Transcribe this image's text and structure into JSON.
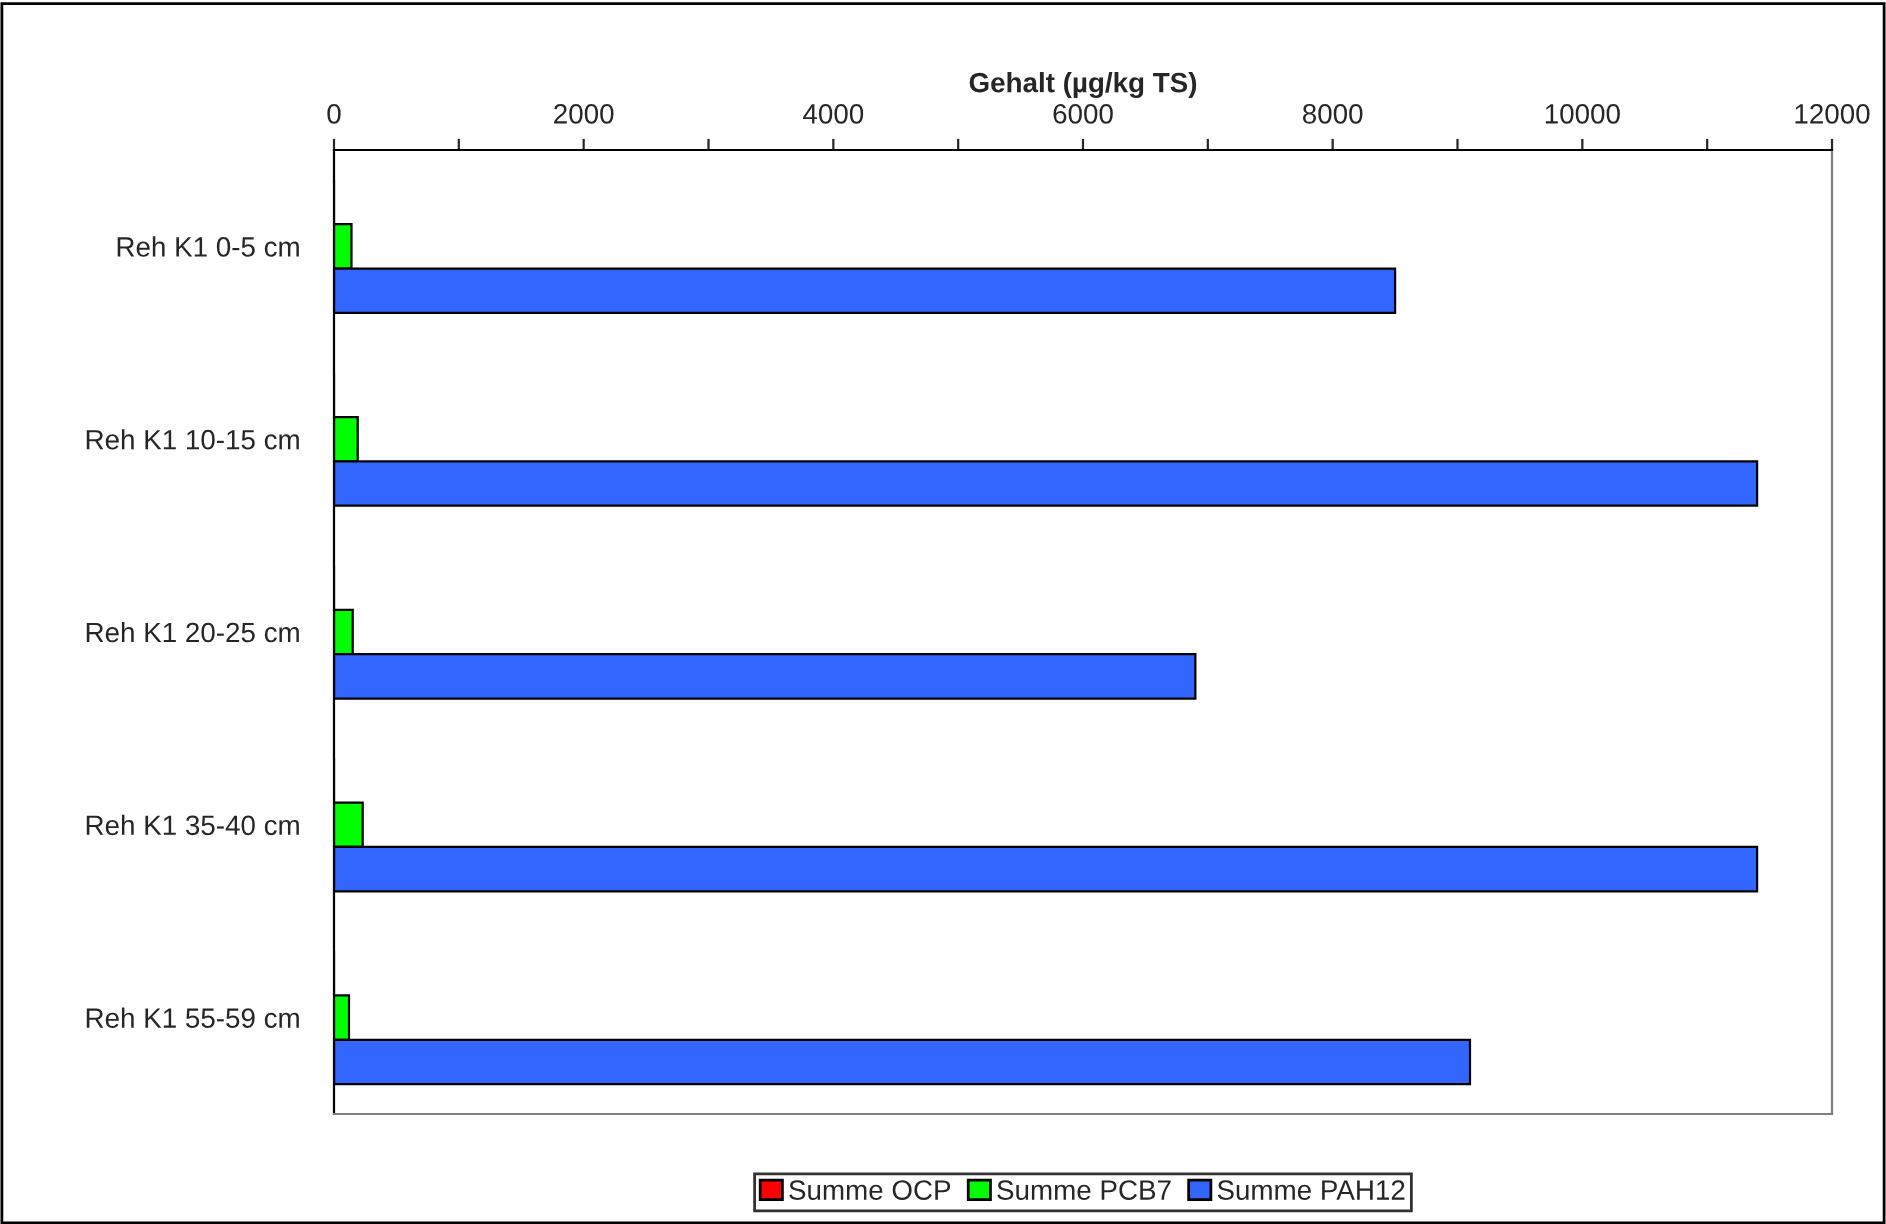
{
  "chart_data": {
    "type": "bar",
    "orientation": "horizontal",
    "xlabel": "Gehalt (µg/kg TS)",
    "categories": [
      "Reh K1 0-5 cm",
      "Reh K1 10-15 cm",
      "Reh K1 20-25 cm",
      "Reh K1 35-40 cm",
      "Reh K1 55-59 cm"
    ],
    "series": [
      {
        "name": "Summe OCP",
        "color": "#ff0000",
        "values": [
          0,
          0,
          0,
          0,
          0
        ]
      },
      {
        "name": "Summe PCB7",
        "color": "#00ff00",
        "values": [
          140,
          190,
          150,
          230,
          120
        ]
      },
      {
        "name": "Summe PAH12",
        "color": "#3366ff",
        "values": [
          8500,
          11400,
          6900,
          11400,
          9100
        ]
      }
    ],
    "xlim": [
      0,
      12000
    ],
    "xticks": [
      0,
      {
        "value": 1000,
        "label": null
      },
      2000,
      {
        "value": 3000,
        "label": null
      },
      4000,
      {
        "value": 5000,
        "label": null
      },
      6000,
      {
        "value": 7000,
        "label": null
      },
      8000,
      {
        "value": 9000,
        "label": null
      },
      10000,
      {
        "value": 11000,
        "label": null
      },
      12000
    ],
    "grid": false,
    "legend": "bottom"
  }
}
